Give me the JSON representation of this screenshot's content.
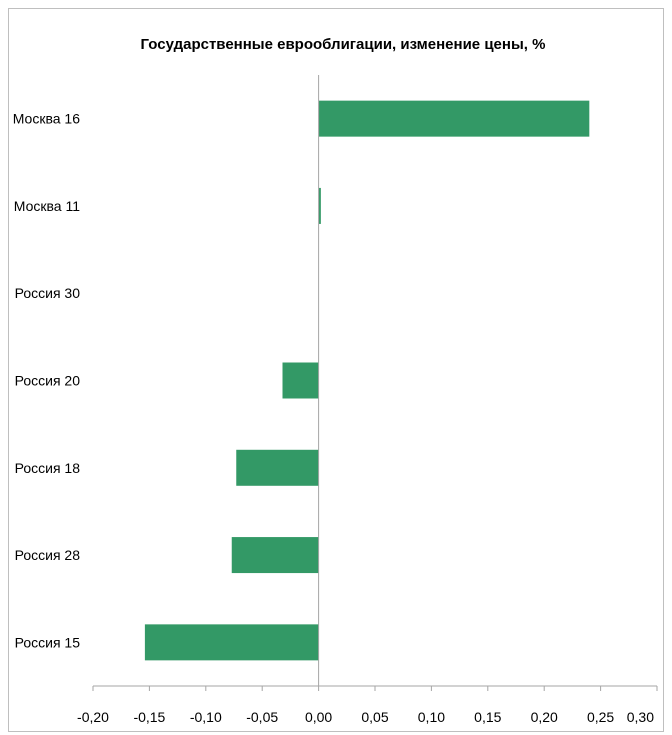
{
  "chart_data": {
    "type": "bar",
    "orientation": "horizontal",
    "title": "Государственные еврооблигации, изменение цены, %",
    "categories": [
      "Москва 16",
      "Москва 11",
      "Россия 30",
      "Россия 20",
      "Россия 18",
      "Россия 28",
      "Россия 15"
    ],
    "values": [
      0.24,
      0.002,
      0.0,
      -0.032,
      -0.073,
      -0.077,
      -0.154
    ],
    "xlim": [
      -0.2,
      0.3
    ],
    "xticks": [
      "-0,20",
      "-0,15",
      "-0,10",
      "-0,05",
      "0,00",
      "0,05",
      "0,10",
      "0,15",
      "0,20",
      "0,25",
      "0,30"
    ],
    "xtick_values": [
      -0.2,
      -0.15,
      -0.1,
      -0.05,
      0.0,
      0.05,
      0.1,
      0.15,
      0.2,
      0.25,
      0.3
    ],
    "xlabel": "",
    "ylabel": "",
    "grid": false,
    "legend": "none",
    "bar_color": "#339966"
  }
}
